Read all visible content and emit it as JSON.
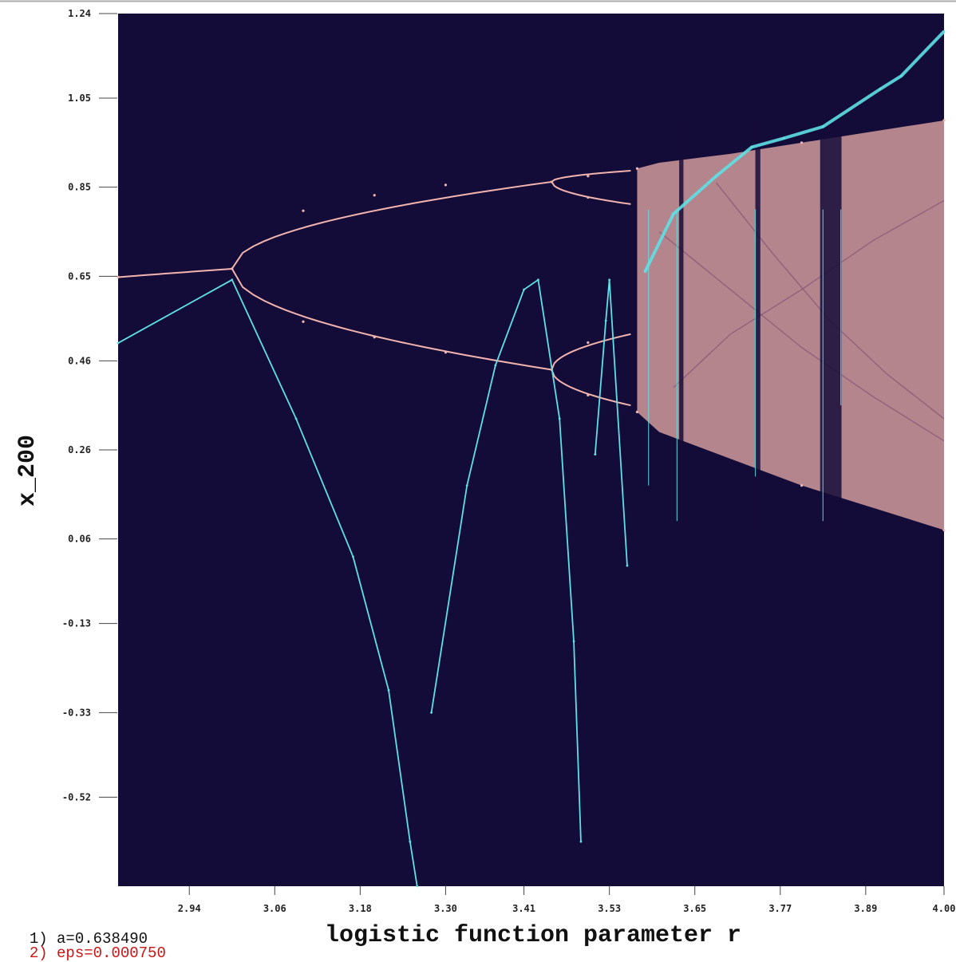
{
  "chart_data": {
    "type": "scatter",
    "title": "",
    "xlabel": "logistic function parameter r",
    "ylabel": "x_200",
    "xlim": [
      2.84,
      4.0
    ],
    "ylim": [
      -0.72,
      1.24
    ],
    "x_ticks": [
      "2.94",
      "3.06",
      "3.18",
      "3.30",
      "3.41",
      "3.53",
      "3.65",
      "3.77",
      "3.89",
      "4.00"
    ],
    "y_ticks": [
      "1.24",
      "1.05",
      "0.85",
      "0.65",
      "0.46",
      "0.26",
      "0.06",
      "-0.13",
      "-0.33",
      "-0.52"
    ],
    "background": "#140c38",
    "series": [
      {
        "color": "#f2b4ae",
        "kind": "bifurcation",
        "points": [
          [
            2.84,
            0.648
          ],
          [
            3.0,
            0.667
          ],
          [
            3.1,
            0.797
          ],
          [
            3.2,
            0.832
          ],
          [
            3.3,
            0.855
          ],
          [
            3.449,
            0.862
          ],
          [
            3.1,
            0.548
          ],
          [
            3.2,
            0.513
          ],
          [
            3.3,
            0.479
          ],
          [
            3.449,
            0.44
          ],
          [
            3.5,
            0.875
          ],
          [
            3.5,
            0.827
          ],
          [
            3.5,
            0.501
          ],
          [
            3.5,
            0.383
          ],
          [
            3.569,
            0.892
          ],
          [
            3.569,
            0.345
          ],
          [
            3.8,
            0.95
          ],
          [
            3.8,
            0.18
          ],
          [
            4.0,
            1.0
          ],
          [
            4.0,
            0.08
          ]
        ]
      },
      {
        "color": "#5ee0e4",
        "kind": "error curve",
        "points": [
          [
            2.84,
            0.5
          ],
          [
            3.0,
            0.642
          ],
          [
            3.09,
            0.33
          ],
          [
            3.17,
            0.02
          ],
          [
            3.22,
            -0.28
          ],
          [
            3.25,
            -0.62
          ],
          [
            3.26,
            -0.72
          ],
          [
            3.28,
            -0.33
          ],
          [
            3.33,
            0.18
          ],
          [
            3.37,
            0.45
          ],
          [
            3.41,
            0.62
          ],
          [
            3.43,
            0.642
          ],
          [
            3.46,
            0.33
          ],
          [
            3.48,
            -0.17
          ],
          [
            3.49,
            -0.62
          ],
          [
            3.51,
            0.25
          ],
          [
            3.525,
            0.55
          ],
          [
            3.53,
            0.642
          ],
          [
            3.555,
            0.0
          ],
          [
            3.58,
            0.66
          ],
          [
            3.62,
            0.79
          ],
          [
            3.68,
            0.875
          ],
          [
            3.73,
            0.94
          ],
          [
            3.775,
            0.96
          ],
          [
            3.83,
            0.986
          ],
          [
            3.91,
            1.07
          ],
          [
            3.94,
            1.1
          ],
          [
            4.0,
            1.2
          ]
        ]
      }
    ],
    "annotations": [
      {
        "label": "1)",
        "text": "a=0.638490",
        "color": "#111111"
      },
      {
        "label": "2)",
        "text": "eps=0.000750",
        "color": "#cc1414"
      }
    ]
  }
}
